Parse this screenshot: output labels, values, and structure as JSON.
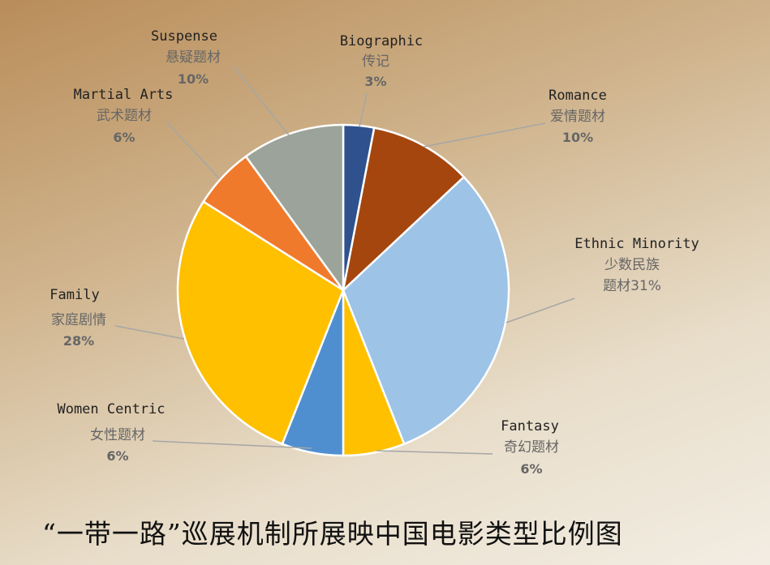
{
  "chart_data": {
    "type": "pie",
    "title": "“一带一路”巡展机制所展映中国电影类型比例图",
    "slices": [
      {
        "name_en": "Biographic",
        "name_zh": "传记",
        "pct_label": "3%",
        "value": 3,
        "color": "#2f528f"
      },
      {
        "name_en": "Romance",
        "name_zh": "爱情题材",
        "pct_label": "10%",
        "value": 10,
        "color": "#a5460f"
      },
      {
        "name_en": "Ethnic Minority",
        "name_zh": "少数民族",
        "name_zh_2": "题材31%",
        "pct_label": "",
        "value": 31,
        "color": "#9dc3e6"
      },
      {
        "name_en": "Fantasy",
        "name_zh": "奇幻题材",
        "pct_label": "6%",
        "value": 6,
        "color": "#ffc000"
      },
      {
        "name_en": "Women Centric",
        "name_zh": "女性题材",
        "pct_label": "6%",
        "value": 6,
        "color": "#4f8fd0"
      },
      {
        "name_en": "Family",
        "name_zh": "家庭剧情",
        "pct_label": "28%",
        "value": 28,
        "color": "#ffc000"
      },
      {
        "name_en": "Martial Arts",
        "name_zh": "武术题材",
        "pct_label": "6%",
        "value": 6,
        "color": "#f07a2b"
      },
      {
        "name_en": "Suspense",
        "name_zh": "悬疑题材",
        "pct_label": "10%",
        "value": 10,
        "color": "#9ba39a"
      }
    ]
  }
}
